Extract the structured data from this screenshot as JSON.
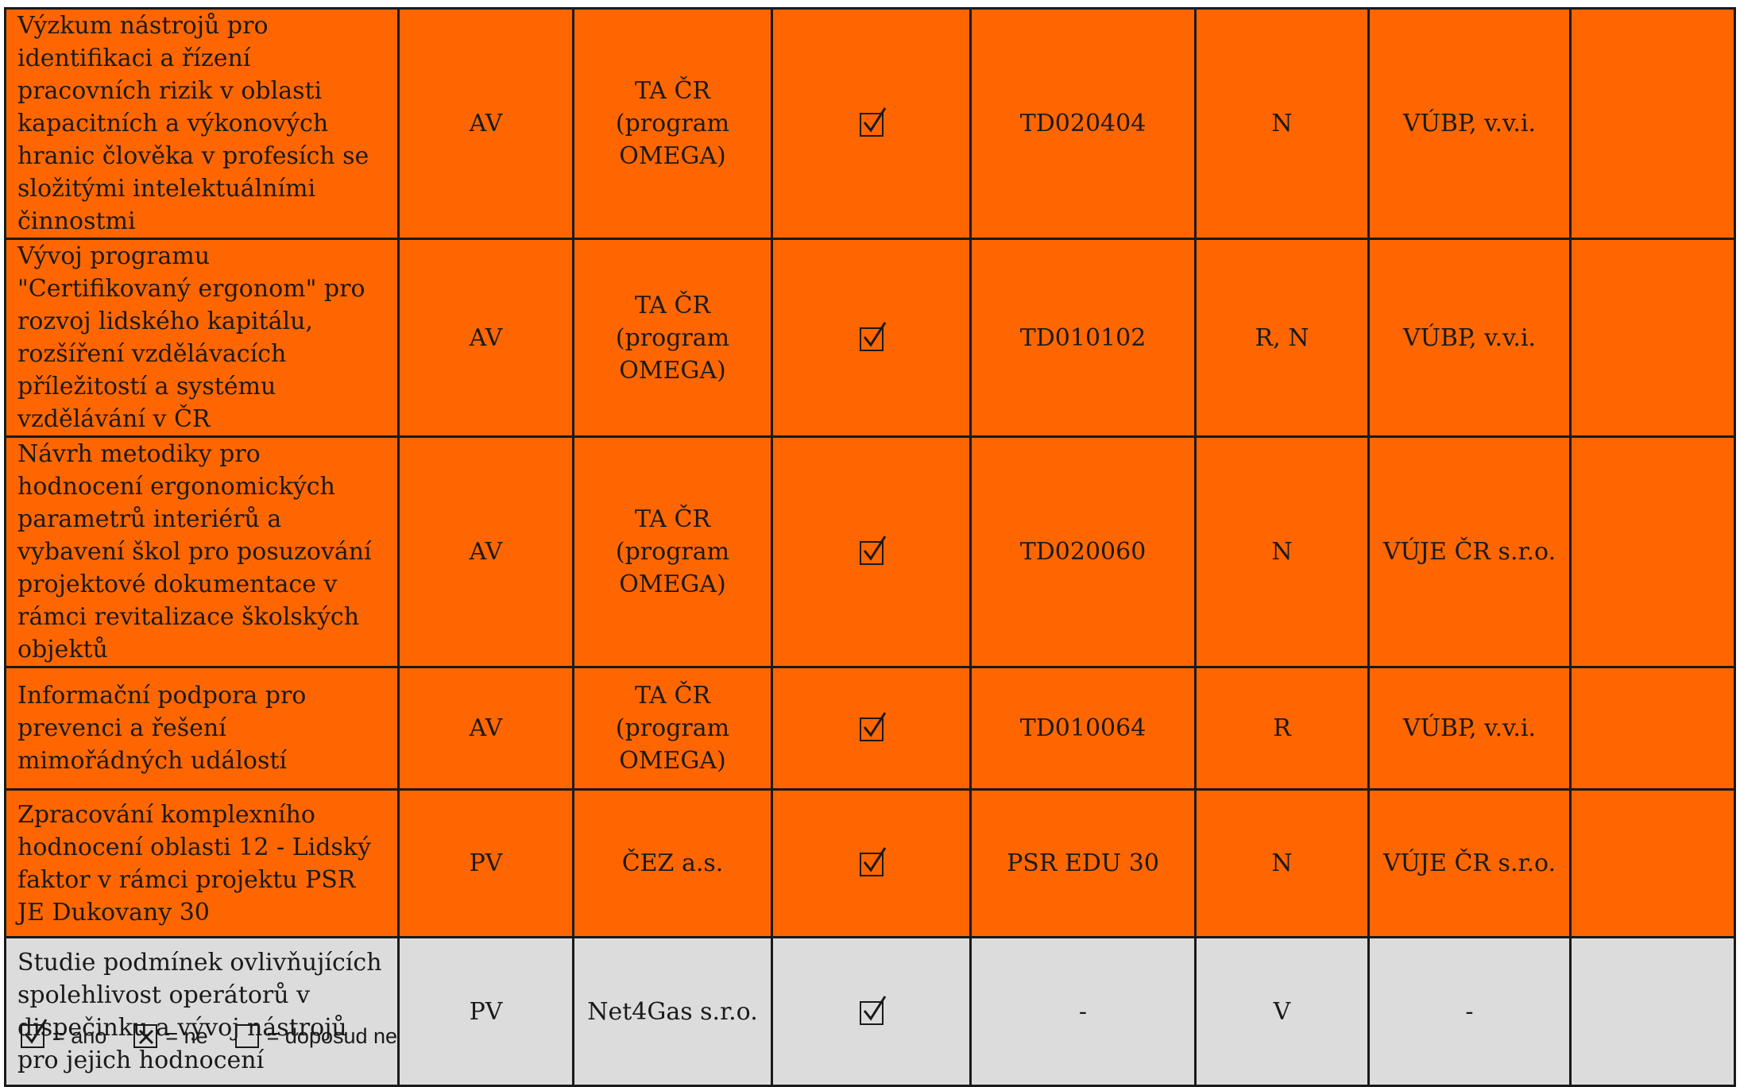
{
  "rows": [
    {
      "title": "Výzkum nástrojů pro identifikaci a řízení pracovních rizik v oblasti kapacitních a výkonových hranic člověka v profesích se složitými intelektuálními činnostmi",
      "type": "AV",
      "provider": "TA ČR (program OMEGA)",
      "status": "ano",
      "code": "TD020404",
      "category": "N",
      "partner": "VÚBP, v.v.i.",
      "note": "",
      "color": "#ff6600"
    },
    {
      "title": "Vývoj programu \"Certifikovaný ergonom\" pro rozvoj lidského kapitálu, rozšíření vzdělávacích příležitostí a systému vzdělávání v ČR",
      "type": "AV",
      "provider": "TA ČR (program OMEGA)",
      "status": "ano",
      "code": "TD010102",
      "category": "R, N",
      "partner": "VÚBP, v.v.i.",
      "note": "",
      "color": "#ff6600"
    },
    {
      "title": "Návrh metodiky pro hodnocení ergonomických parametrů interiérů a vybavení škol pro posuzování projektové dokumentace v rámci revitalizace školských objektů",
      "type": "AV",
      "provider": "TA ČR (program OMEGA)",
      "status": "ano",
      "code": "TD020060",
      "category": "N",
      "partner": "VÚJE ČR s.r.o.",
      "note": "",
      "color": "#ff6600"
    },
    {
      "title": "Informační podpora pro prevenci a řešení mimořádných událostí",
      "type": "AV",
      "provider": "TA ČR (program OMEGA)",
      "status": "ano",
      "code": "TD010064",
      "category": "R",
      "partner": "VÚBP, v.v.i.",
      "note": "",
      "color": "#ff6600"
    },
    {
      "title": "Zpracování komplexního hodnocení oblasti 12 - Lidský faktor v rámci projektu PSR JE Dukovany 30",
      "type": "PV",
      "provider": "ČEZ a.s.",
      "status": "ano",
      "code": "PSR EDU 30",
      "category": "N",
      "partner": "VÚJE ČR s.r.o.",
      "note": "",
      "color": "#ff6600"
    },
    {
      "title": "Studie podmínek ovlivňujících spolehlivost operátorů v dispečinku a vývoj nástrojů pro jejich hodnocení",
      "type": "PV",
      "provider": "Net4Gas s.r.o.",
      "status": "ano",
      "code": "-",
      "category": "V",
      "partner": "-",
      "note": "",
      "color": "#dcdcdc"
    }
  ],
  "legend": [
    {
      "icon": "checked-box-icon",
      "label": "= ano"
    },
    {
      "icon": "crossed-box-icon",
      "label": "= ne"
    },
    {
      "icon": "empty-box-icon",
      "label": "= doposud ne"
    }
  ]
}
